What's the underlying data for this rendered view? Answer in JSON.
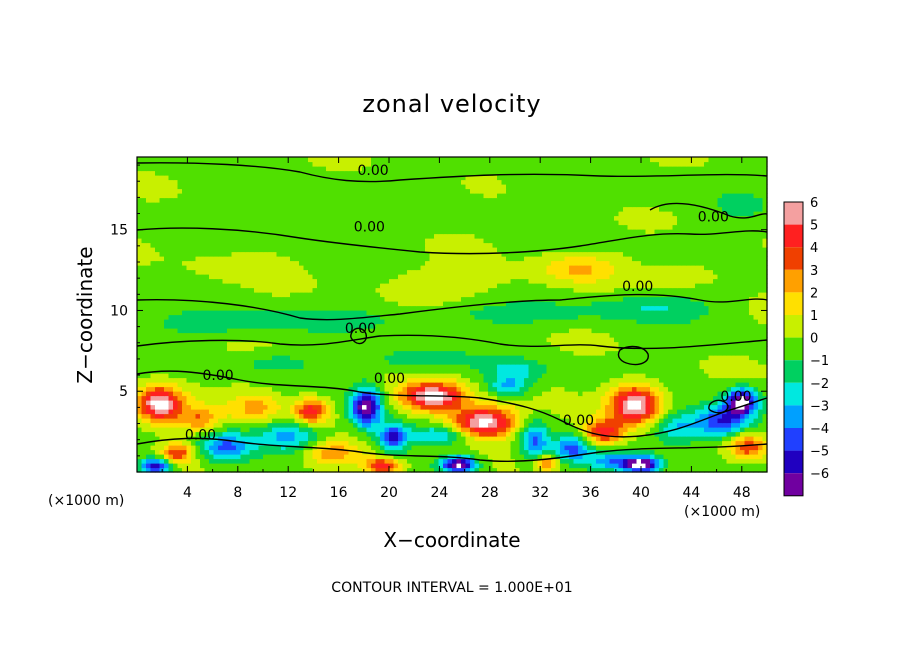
{
  "chart_data": {
    "type": "heatmap",
    "title": "zonal velocity",
    "xlabel": "X−coordinate",
    "ylabel": "Z−coordinate",
    "x_unit_left": "(×1000 m)",
    "x_unit_right": "(×1000 m)",
    "footer": "CONTOUR INTERVAL = 1.000E+01",
    "xlim": [
      0,
      50
    ],
    "ylim": [
      0,
      19.5
    ],
    "x_ticks": [
      4,
      8,
      12,
      16,
      20,
      24,
      28,
      32,
      36,
      40,
      44,
      48
    ],
    "y_ticks": [
      5,
      10,
      15
    ],
    "colorbar": {
      "levels": [
        6,
        5,
        4,
        3,
        2,
        1,
        0,
        -1,
        -2,
        -3,
        -4,
        -5,
        -6
      ],
      "labels": [
        "6",
        "5",
        "4",
        "3",
        "2",
        "1",
        "0",
        "−1",
        "−2",
        "−3",
        "−4",
        "−5",
        "−6"
      ],
      "colors": [
        "#f4a0a0",
        "#ff2020",
        "#f04000",
        "#ffa000",
        "#ffe000",
        "#c8f000",
        "#50e000",
        "#00d060",
        "#00e8e0",
        "#00a0ff",
        "#2040ff",
        "#2000c0",
        "#7000a0"
      ]
    },
    "contour_labels": [
      {
        "text": "0.00",
        "x": 17.5,
        "y": 18.4
      },
      {
        "text": "0.00",
        "x": 17.2,
        "y": 14.9
      },
      {
        "text": "0.00",
        "x": 44.5,
        "y": 15.5
      },
      {
        "text": "0.00",
        "x": 38.5,
        "y": 11.2
      },
      {
        "text": "0.00",
        "x": 16.5,
        "y": 8.6
      },
      {
        "text": "0.00",
        "x": 5.2,
        "y": 5.7
      },
      {
        "text": "0.00",
        "x": 18.8,
        "y": 5.5
      },
      {
        "text": "0.00",
        "x": 3.8,
        "y": 2.0
      },
      {
        "text": "0.00",
        "x": 33.8,
        "y": 2.9
      },
      {
        "text": "0.00",
        "x": 46.3,
        "y": 4.4
      }
    ],
    "field_anomalies": [
      {
        "x": 1.8,
        "y": 4.2,
        "sx": 1.8,
        "sy": 1.1,
        "v": 7
      },
      {
        "x": 5.0,
        "y": 3.3,
        "sx": 1.5,
        "sy": 0.8,
        "v": 3
      },
      {
        "x": 7.0,
        "y": 1.6,
        "sx": 2.0,
        "sy": 0.9,
        "v": -4
      },
      {
        "x": 9.5,
        "y": 4.0,
        "sx": 2.2,
        "sy": 1.0,
        "v": 2.5
      },
      {
        "x": 12.0,
        "y": 2.3,
        "sx": 2.5,
        "sy": 0.9,
        "v": -3
      },
      {
        "x": 13.8,
        "y": 3.8,
        "sx": 1.3,
        "sy": 0.8,
        "v": 5
      },
      {
        "x": 15.5,
        "y": 1.2,
        "sx": 2.2,
        "sy": 0.8,
        "v": 3
      },
      {
        "x": 18.2,
        "y": 4.0,
        "sx": 1.2,
        "sy": 1.2,
        "v": -7
      },
      {
        "x": 20.3,
        "y": 2.2,
        "sx": 1.2,
        "sy": 0.9,
        "v": -5
      },
      {
        "x": 19.5,
        "y": 0.4,
        "sx": 1.5,
        "sy": 0.5,
        "v": 5
      },
      {
        "x": 23.5,
        "y": 4.7,
        "sx": 2.5,
        "sy": 0.9,
        "v": 7
      },
      {
        "x": 27.5,
        "y": 3.1,
        "sx": 2.5,
        "sy": 1.0,
        "v": 7
      },
      {
        "x": 24.0,
        "y": 2.3,
        "sx": 2.5,
        "sy": 0.6,
        "v": -3
      },
      {
        "x": 25.5,
        "y": 0.5,
        "sx": 1.3,
        "sy": 0.5,
        "v": -7
      },
      {
        "x": 29.5,
        "y": 5.3,
        "sx": 1.5,
        "sy": 0.6,
        "v": -3
      },
      {
        "x": 31.5,
        "y": 2.0,
        "sx": 1.2,
        "sy": 1.2,
        "v": -4
      },
      {
        "x": 32.5,
        "y": 0.6,
        "sx": 0.8,
        "sy": 0.5,
        "v": 4
      },
      {
        "x": 34.5,
        "y": 1.5,
        "sx": 1.5,
        "sy": 0.8,
        "v": -4
      },
      {
        "x": 37.0,
        "y": 2.5,
        "sx": 1.6,
        "sy": 0.8,
        "v": 5
      },
      {
        "x": 39.5,
        "y": 4.2,
        "sx": 2.0,
        "sy": 1.2,
        "v": 7
      },
      {
        "x": 37.5,
        "y": 0.7,
        "sx": 2.0,
        "sy": 0.6,
        "v": -3
      },
      {
        "x": 40.0,
        "y": 0.5,
        "sx": 1.5,
        "sy": 0.5,
        "v": -7
      },
      {
        "x": 43.0,
        "y": 2.8,
        "sx": 2.0,
        "sy": 1.0,
        "v": -3
      },
      {
        "x": 46.5,
        "y": 3.2,
        "sx": 2.0,
        "sy": 1.0,
        "v": -5
      },
      {
        "x": 48.0,
        "y": 4.4,
        "sx": 1.2,
        "sy": 0.8,
        "v": -7
      },
      {
        "x": 48.5,
        "y": 1.6,
        "sx": 1.5,
        "sy": 0.8,
        "v": 4
      },
      {
        "x": 1.5,
        "y": 0.4,
        "sx": 1.2,
        "sy": 0.5,
        "v": -6
      },
      {
        "x": 3.2,
        "y": 1.2,
        "sx": 1.2,
        "sy": 0.6,
        "v": 4
      },
      {
        "x": 6.0,
        "y": 9.2,
        "sx": 5.0,
        "sy": 0.8,
        "v": -1.4
      },
      {
        "x": 15.0,
        "y": 9.5,
        "sx": 6.0,
        "sy": 0.7,
        "v": -1.2
      },
      {
        "x": 30.0,
        "y": 9.8,
        "sx": 6.0,
        "sy": 0.7,
        "v": -1.3
      },
      {
        "x": 41.0,
        "y": 10.2,
        "sx": 5.0,
        "sy": 0.8,
        "v": -1.6
      },
      {
        "x": 22.0,
        "y": 7.0,
        "sx": 4.0,
        "sy": 0.7,
        "v": -1.5
      },
      {
        "x": 30.0,
        "y": 6.3,
        "sx": 2.5,
        "sy": 0.7,
        "v": -2.0
      },
      {
        "x": 11.0,
        "y": 6.8,
        "sx": 3.0,
        "sy": 0.6,
        "v": -1.2
      },
      {
        "x": 35.0,
        "y": 12.6,
        "sx": 3.0,
        "sy": 0.9,
        "v": 2.2
      },
      {
        "x": 25.0,
        "y": 11.8,
        "sx": 6.0,
        "sy": 1.0,
        "v": 0.9
      },
      {
        "x": 8.0,
        "y": 12.8,
        "sx": 4.0,
        "sy": 0.9,
        "v": 0.7
      },
      {
        "x": 44.0,
        "y": 12.3,
        "sx": 3.0,
        "sy": 0.8,
        "v": 0.9
      },
      {
        "x": 12.0,
        "y": 16.5,
        "sx": 8.0,
        "sy": 1.5,
        "v": -0.35
      },
      {
        "x": 35.0,
        "y": 17.5,
        "sx": 8.0,
        "sy": 1.5,
        "v": -0.25
      },
      {
        "x": 48.0,
        "y": 16.5,
        "sx": 2.0,
        "sy": 1.0,
        "v": -0.8
      }
    ]
  }
}
